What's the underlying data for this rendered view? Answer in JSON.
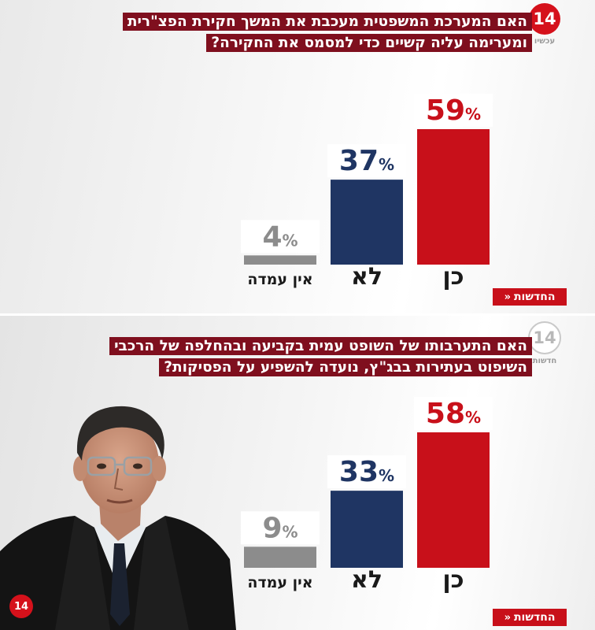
{
  "brand": {
    "logo_top_number": "14",
    "logo_top_sub": "עכשיו",
    "logo_bottom_number": "14",
    "logo_bottom_sub": "חדשות",
    "news_tag": "החדשות",
    "badge_number": "14"
  },
  "colors": {
    "yes": "#c8101a",
    "no": "#1f3563",
    "undecided": "#8c8c8c",
    "question_bg": "#7f0f1e"
  },
  "chart_data": [
    {
      "type": "bar",
      "title": "האם המערכת המשפטית מעכבת את המשך חקירת הפצ\"רית ומערימה עליה קשיים כדי למסמס את החקירה?",
      "categories": [
        "כן",
        "לא",
        "אין עמדה"
      ],
      "values": [
        59,
        37,
        4
      ],
      "unit": "%",
      "ylim": [
        0,
        59
      ],
      "grid": false,
      "legend": "none"
    },
    {
      "type": "bar",
      "title": "האם התערבותו של השופט עמית בקביעה ובהחלפה של הרכבי השיפוט בעתירות בבג\"ץ, נועדה להשפיע על הפסיקות?",
      "categories": [
        "כן",
        "לא",
        "אין עמדה"
      ],
      "values": [
        58,
        33,
        9
      ],
      "unit": "%",
      "ylim": [
        0,
        58
      ],
      "grid": false,
      "legend": "none"
    }
  ]
}
